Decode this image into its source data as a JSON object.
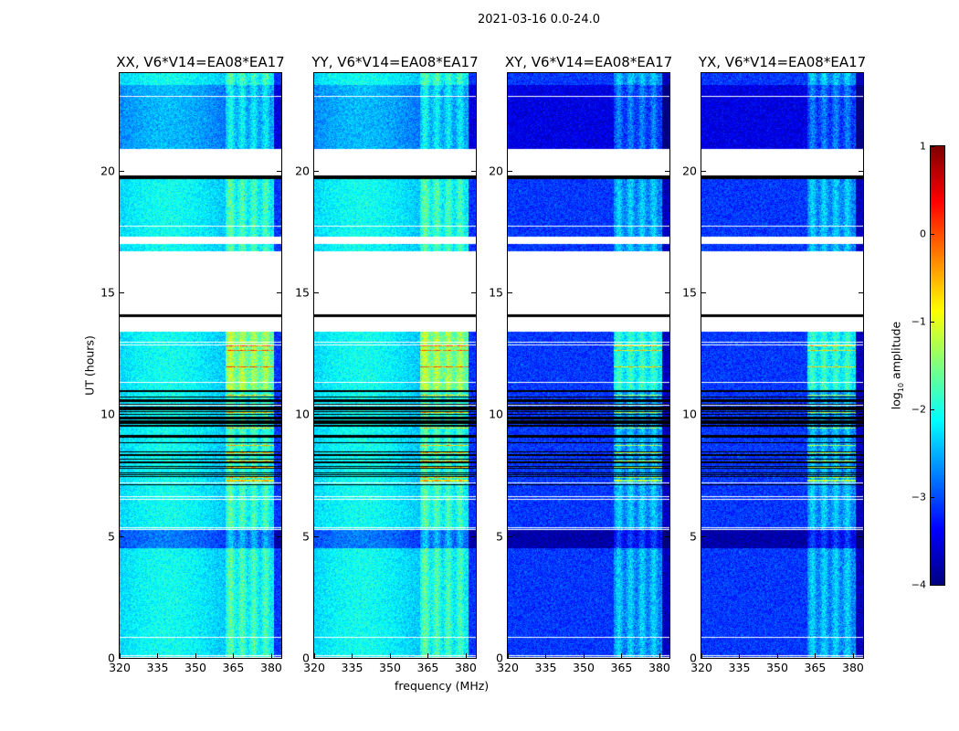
{
  "chart_data": {
    "type": "heatmap",
    "title": "2021-03-16 0.0-24.0",
    "xlabel": "frequency (MHz)",
    "ylabel": "UT (hours)",
    "xlim": [
      320,
      384
    ],
    "ylim": [
      0,
      24
    ],
    "xticks": [
      "320",
      "335",
      "350",
      "365",
      "380"
    ],
    "xtick_values": [
      320,
      335,
      350,
      365,
      380
    ],
    "yticks": [
      "0",
      "5",
      "10",
      "15",
      "20"
    ],
    "ytick_values": [
      0,
      5,
      10,
      15,
      20
    ],
    "colorbar": {
      "label_prefix": "log",
      "label_sub": "10",
      "label_suffix": " amplitude",
      "range": [
        -4,
        1
      ],
      "ticks": [
        "1",
        "0",
        "−1",
        "−2",
        "−3",
        "−4"
      ],
      "tick_values": [
        1,
        0,
        -1,
        -2,
        -3,
        -4
      ],
      "colormap": "jet"
    },
    "panels": [
      {
        "title": "XX, V6*V14=EA08*EA17",
        "base_level": -2.3
      },
      {
        "title": "YY, V6*V14=EA08*EA17",
        "base_level": -2.3
      },
      {
        "title": "XY, V6*V14=EA08*EA17",
        "base_level": -3.1
      },
      {
        "title": "YX, V6*V14=EA08*EA17",
        "base_level": -3.1
      }
    ],
    "rfi_band_mhz": [
      362,
      381
    ],
    "flagged_segments_hours": [
      [
        20.9,
        19.8
      ],
      [
        17.3,
        17.0
      ],
      [
        16.7,
        14.1
      ],
      [
        14.0,
        13.4
      ]
    ],
    "zero_segments_hours": [
      [
        19.8,
        19.65
      ],
      [
        14.1,
        14.0
      ]
    ],
    "high_rfi_segments_hours": [
      [
        13.4,
        7.0
      ]
    ]
  }
}
